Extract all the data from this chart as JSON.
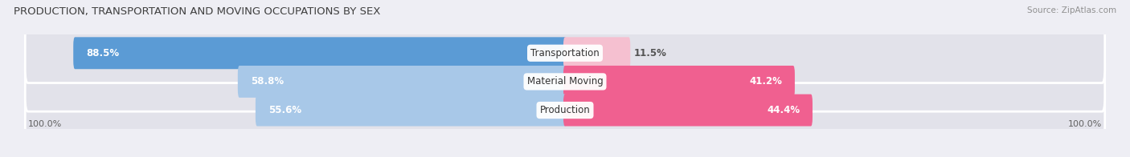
{
  "title": "PRODUCTION, TRANSPORTATION AND MOVING OCCUPATIONS BY SEX",
  "source": "Source: ZipAtlas.com",
  "categories": [
    "Transportation",
    "Material Moving",
    "Production"
  ],
  "male_values": [
    88.5,
    58.8,
    55.6
  ],
  "female_values": [
    11.5,
    41.2,
    44.4
  ],
  "male_color_top": "#5b9bd5",
  "male_color_mid": "#92bce0",
  "male_color_bot": "#92bce0",
  "female_color_top": "#f5c0d0",
  "female_color_mid": "#f06090",
  "female_color_bot": "#f06090",
  "bg_color": "#eeeef4",
  "bar_bg_color": "#e2e2ea",
  "title_color": "#404040",
  "source_color": "#909090",
  "left_label": "100.0%",
  "right_label": "100.0%",
  "male_colors": [
    "#5b9bd5",
    "#a8c8e8",
    "#a8c8e8"
  ],
  "female_colors": [
    "#f5c0d0",
    "#f06090",
    "#f06090"
  ]
}
